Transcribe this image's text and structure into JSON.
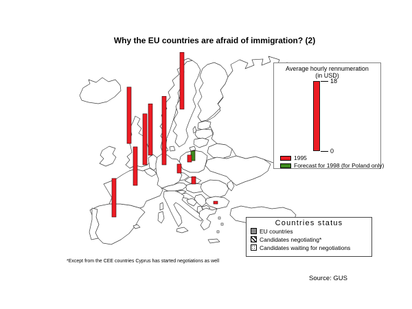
{
  "title": "Why the EU countries are afraid of immigration? (2)",
  "footnote": "*Except from the CEE countries Cyprus has started negotiations as well",
  "source": "Source: GUS",
  "colors": {
    "bar_1995": "#ed1c24",
    "bar_forecast": "#3e8a1e",
    "eu_country_fill": "#8a8a8a",
    "country_outline": "#3c3c3c"
  },
  "remuneration_legend": {
    "title": "Average hourly rennumeration",
    "subtitle": "(in USD)",
    "axis_max_label": "18",
    "axis_min_label": "0",
    "items": [
      {
        "label": "1995",
        "color": "#ed1c24"
      },
      {
        "label": "Forecast for 1998 (for Poland only)",
        "color": "#3e8a1e"
      }
    ]
  },
  "status_legend": {
    "title": "Countries status",
    "items": [
      {
        "label": "EU countries",
        "style": "eu"
      },
      {
        "label": "Candidates negotiating*",
        "style": "negotiating"
      },
      {
        "label": "Candidates waiting for negotiations",
        "style": "waiting"
      }
    ]
  },
  "chart_data": {
    "type": "bar",
    "title": "Average hourly rennumeration (in USD)",
    "unit": "USD",
    "axis_min": 0,
    "axis_max": 18,
    "legend_position": "top-right",
    "series": [
      {
        "name": "1995",
        "color": "#ed1c24",
        "points": [
          {
            "country": "Spain",
            "value": 9.9
          },
          {
            "country": "United Kingdom",
            "value": 14.5
          },
          {
            "country": "France",
            "value": 9.9
          },
          {
            "country": "Belgium",
            "value": 13.1
          },
          {
            "country": "Netherlands",
            "value": 13.2
          },
          {
            "country": "Germany",
            "value": 17.6
          },
          {
            "country": "Sweden",
            "value": 14.6
          },
          {
            "country": "Czech Republic",
            "value": 2.3
          },
          {
            "country": "Poland",
            "value": 1.8
          },
          {
            "country": "Hungary",
            "value": 1.9
          },
          {
            "country": "Bulgaria",
            "value": 0.7
          }
        ]
      },
      {
        "name": "Forecast for 1998 (for Poland only)",
        "color": "#3e8a1e",
        "points": [
          {
            "country": "Poland",
            "value": 2.5
          }
        ]
      }
    ]
  },
  "map": {
    "countries": [
      {
        "name": "Iceland",
        "status": "other"
      },
      {
        "name": "Ireland",
        "status": "eu"
      },
      {
        "name": "United Kingdom",
        "status": "eu"
      },
      {
        "name": "Portugal",
        "status": "eu"
      },
      {
        "name": "Spain",
        "status": "eu"
      },
      {
        "name": "France",
        "status": "eu"
      },
      {
        "name": "Belgium",
        "status": "eu"
      },
      {
        "name": "Netherlands",
        "status": "eu"
      },
      {
        "name": "Germany",
        "status": "eu"
      },
      {
        "name": "Denmark",
        "status": "eu"
      },
      {
        "name": "Norway",
        "status": "eu"
      },
      {
        "name": "Sweden",
        "status": "eu"
      },
      {
        "name": "Finland",
        "status": "eu"
      },
      {
        "name": "Austria",
        "status": "eu"
      },
      {
        "name": "Italy",
        "status": "eu"
      },
      {
        "name": "Greece",
        "status": "eu"
      },
      {
        "name": "Switzerland",
        "status": "other"
      },
      {
        "name": "Estonia",
        "status": "negotiating"
      },
      {
        "name": "Latvia",
        "status": "waiting"
      },
      {
        "name": "Lithuania",
        "status": "waiting"
      },
      {
        "name": "Kaliningrad",
        "status": "other"
      },
      {
        "name": "Poland",
        "status": "negotiating"
      },
      {
        "name": "Czech Republic",
        "status": "negotiating"
      },
      {
        "name": "Slovakia",
        "status": "negotiating"
      },
      {
        "name": "Hungary",
        "status": "negotiating"
      },
      {
        "name": "Romania",
        "status": "waiting"
      },
      {
        "name": "Bulgaria",
        "status": "waiting"
      },
      {
        "name": "Slovenia",
        "status": "other"
      },
      {
        "name": "Croatia",
        "status": "other"
      },
      {
        "name": "Bosnia",
        "status": "other"
      },
      {
        "name": "Serbia",
        "status": "other"
      },
      {
        "name": "Macedonia",
        "status": "other"
      },
      {
        "name": "Albania",
        "status": "other"
      },
      {
        "name": "Belarus",
        "status": "other"
      },
      {
        "name": "Ukraine",
        "status": "other"
      },
      {
        "name": "Moldova",
        "status": "other"
      },
      {
        "name": "Russia",
        "status": "other"
      },
      {
        "name": "Turkey",
        "status": "other"
      }
    ]
  }
}
